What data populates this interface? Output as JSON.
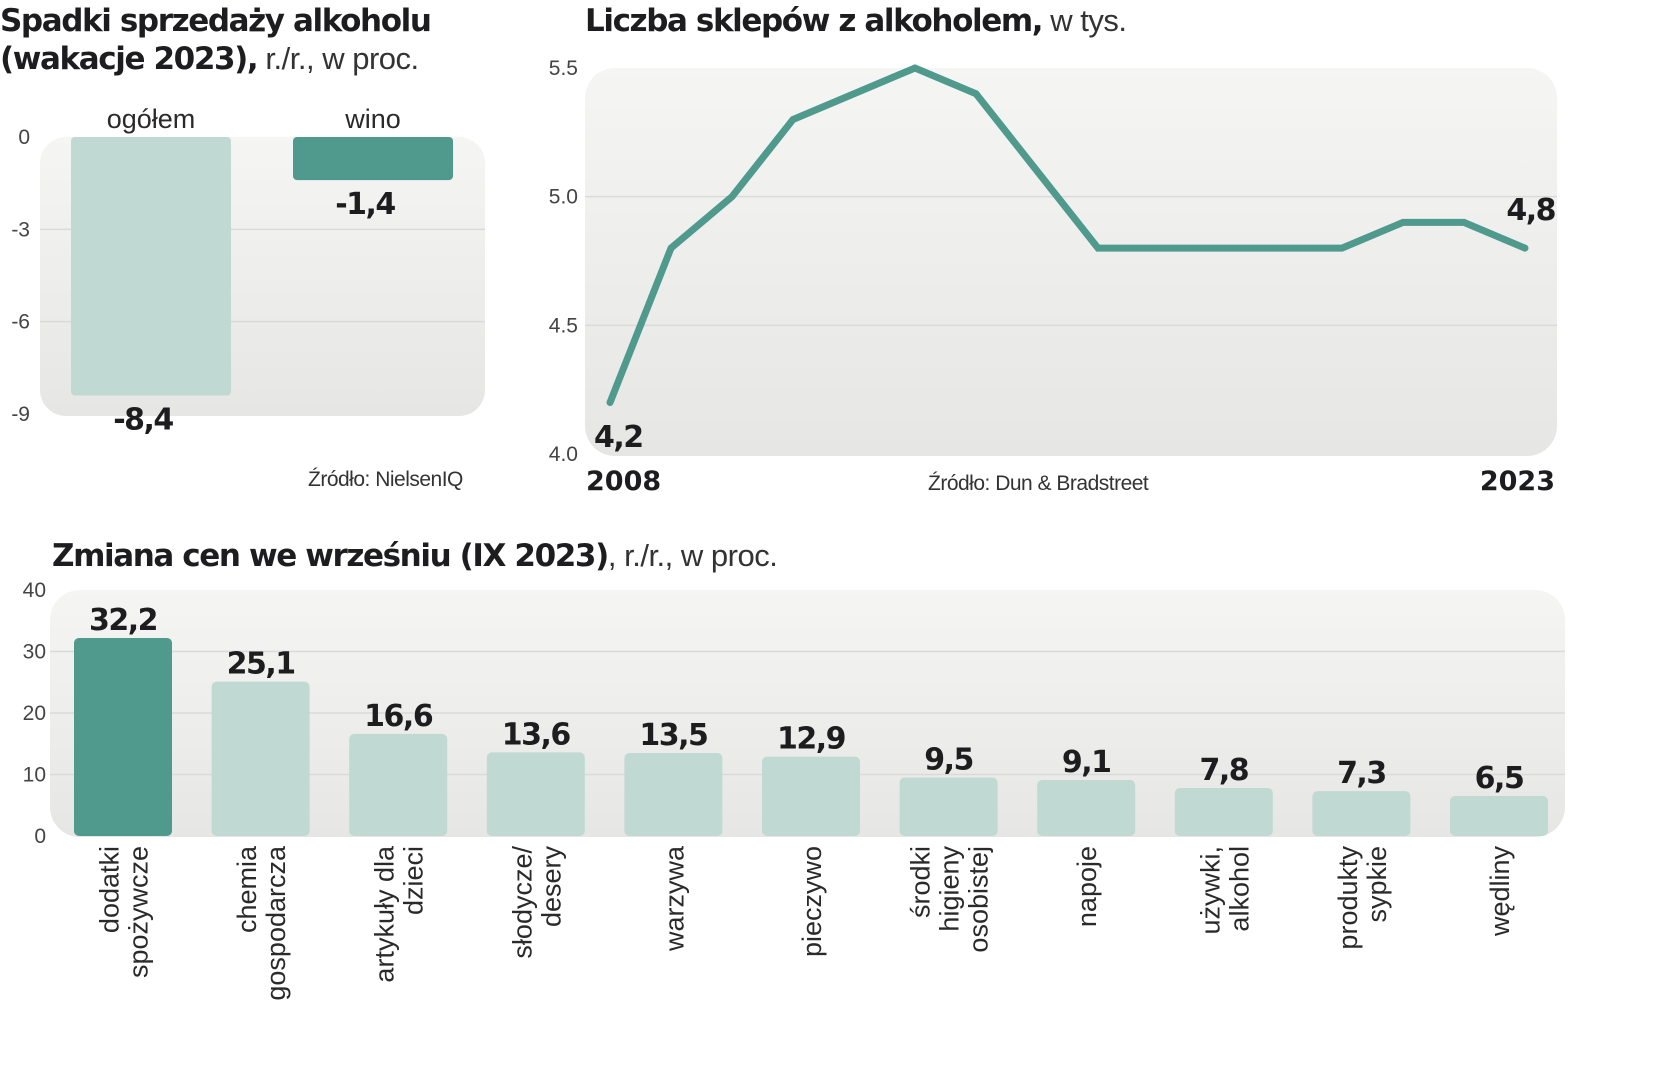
{
  "colors": {
    "accent": "#4f9a8c",
    "light_bar": "#c0d9d3",
    "panel_top": "#f4f4f3",
    "panel_bottom": "#e7e7e5",
    "grid": "#dadada",
    "text": "#1d1d1f"
  },
  "chart_data": [
    {
      "id": "sales-decline",
      "type": "bar",
      "title_bold": "Spadki sprzedaży alkoholu (wakacje 2023),",
      "title_bold_line1": "Spadki sprzedaży alkoholu",
      "title_bold_line2": "(wakacje 2023),",
      "title_light": " r./r., w proc.",
      "categories": [
        "ogółem",
        "wino"
      ],
      "values": [
        -8.4,
        -1.4
      ],
      "value_labels": [
        "-8,4",
        "-1,4"
      ],
      "highlight": [
        false,
        true
      ],
      "yticks": [
        "0",
        "-3",
        "-6",
        "-9"
      ],
      "ytick_values": [
        0,
        -3,
        -6,
        -9
      ],
      "ylim": [
        -9,
        0
      ],
      "grid": true,
      "source": "Źródło: NielsenIQ"
    },
    {
      "id": "store-count",
      "type": "line",
      "title_bold": "Liczba sklepów z alkoholem,",
      "title_light": " w tys.",
      "x": [
        2008,
        2009,
        2010,
        2011,
        2012,
        2013,
        2014,
        2015,
        2016,
        2017,
        2018,
        2019,
        2020,
        2021,
        2022,
        2023
      ],
      "values": [
        4.2,
        4.8,
        5.0,
        5.3,
        5.4,
        5.5,
        5.4,
        5.1,
        4.8,
        4.8,
        4.8,
        4.8,
        4.8,
        4.9,
        4.9,
        4.8
      ],
      "xtick_labels": [
        "2008",
        "2023"
      ],
      "start_label": "4,2",
      "end_label": "4,8",
      "yticks": [
        "5.5",
        "5.0",
        "4.5",
        "4.0"
      ],
      "ytick_values": [
        5.5,
        5.0,
        4.5,
        4.0
      ],
      "ylim": [
        4.0,
        5.5
      ],
      "grid": true,
      "source": "Źródło: Dun & Bradstreet"
    },
    {
      "id": "price-change",
      "type": "bar",
      "title_bold": "Zmiana cen we wrześniu (IX 2023)",
      "title_light": ", r./r., w proc.",
      "categories": [
        [
          "dodatki",
          "spożywcze"
        ],
        [
          "chemia",
          "gospodarcza"
        ],
        [
          "artykuły dla",
          "dzieci"
        ],
        [
          "słodycze/",
          "desery"
        ],
        [
          "warzywa"
        ],
        [
          "pieczywo"
        ],
        [
          "środki",
          "higieny",
          "osobistej"
        ],
        [
          "napoje"
        ],
        [
          "używki,",
          "alkohol"
        ],
        [
          "produkty",
          "sypkie"
        ],
        [
          "wędliny"
        ]
      ],
      "values": [
        32.2,
        25.1,
        16.6,
        13.6,
        13.5,
        12.9,
        9.5,
        9.1,
        7.8,
        7.3,
        6.5
      ],
      "value_labels": [
        "32,2",
        "25,1",
        "16,6",
        "13,6",
        "13,5",
        "12,9",
        "9,5",
        "9,1",
        "7,8",
        "7,3",
        "6,5"
      ],
      "highlight": [
        true,
        false,
        false,
        false,
        false,
        false,
        false,
        false,
        false,
        false,
        false
      ],
      "yticks": [
        "40",
        "30",
        "20",
        "10",
        "0"
      ],
      "ytick_values": [
        40,
        30,
        20,
        10,
        0
      ],
      "ylim": [
        0,
        40
      ],
      "grid": true
    }
  ]
}
